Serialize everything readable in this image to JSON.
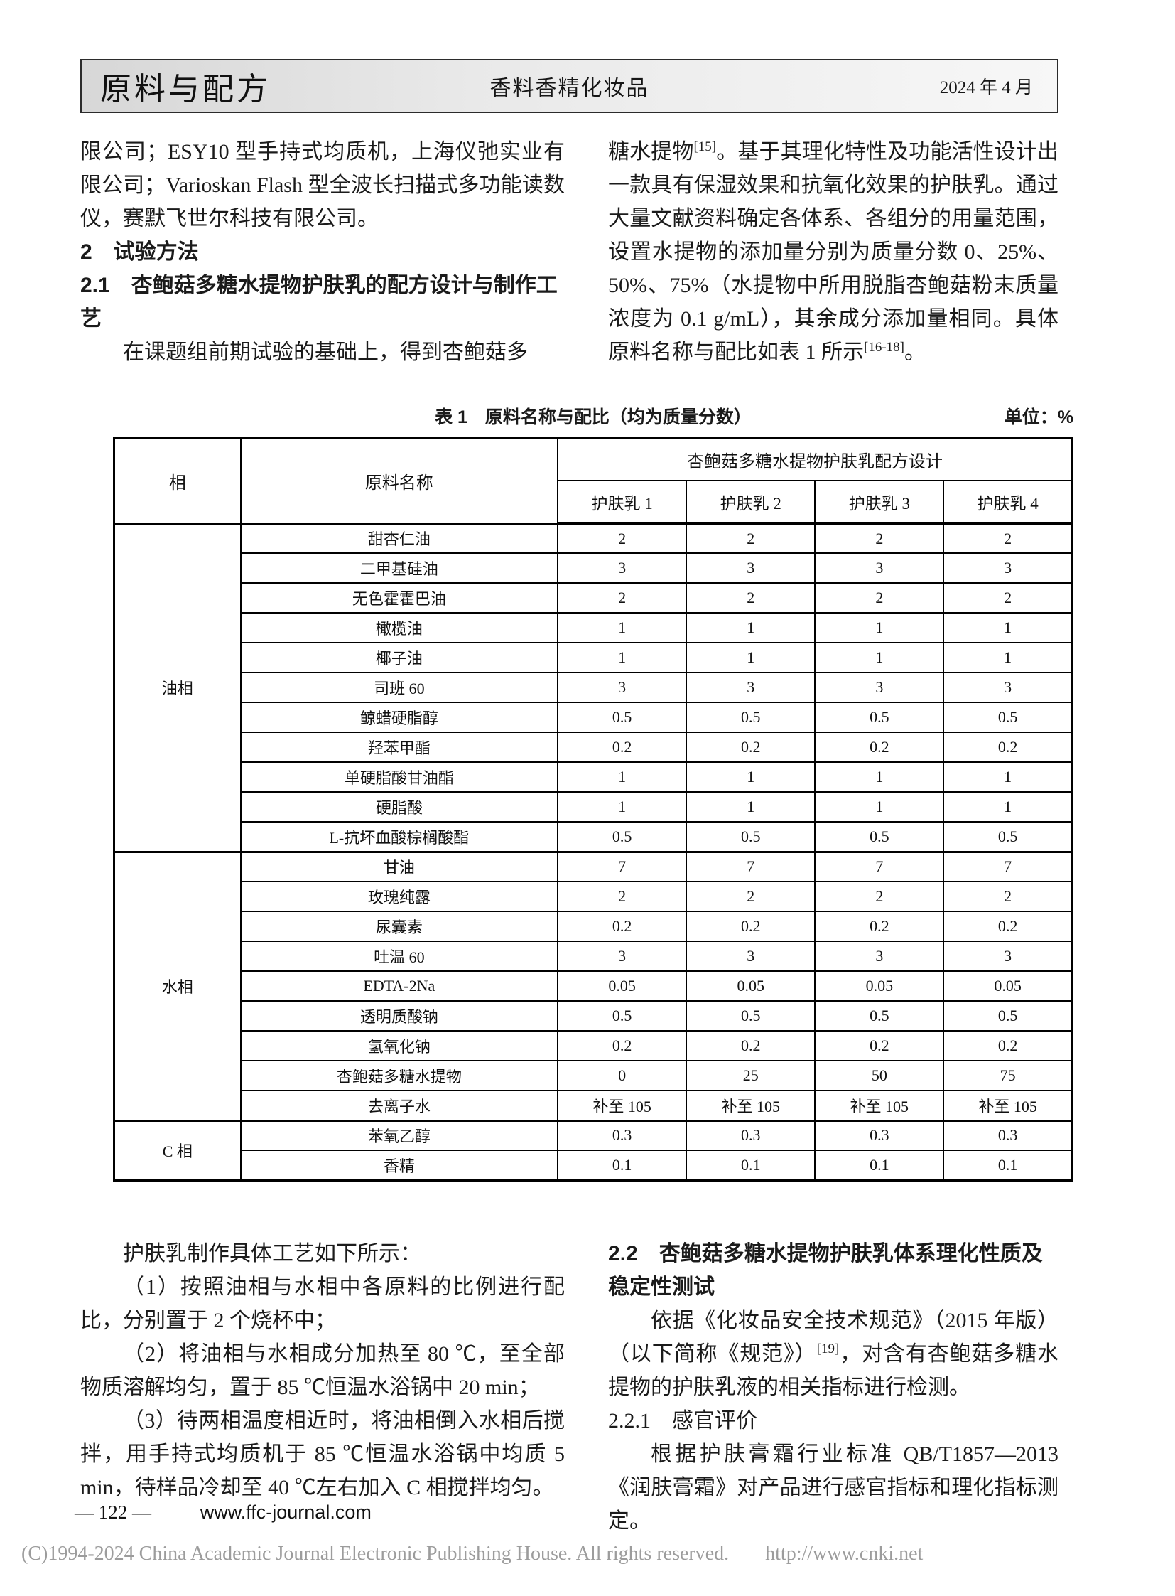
{
  "header": {
    "brand": "原料与配方",
    "journal": "香料香精化妆品",
    "date": "2024 年 4 月"
  },
  "top_left": {
    "p1": "限公司；ESY10 型手持式均质机，上海仪弛实业有限公司；Varioskan Flash 型全波长扫描式多功能读数仪，赛默飞世尔科技有限公司。",
    "h1": "2　试验方法",
    "h2": "2.1　杏鲍菇多糖水提物护肤乳的配方设计与制作工艺",
    "p2": "在课题组前期试验的基础上，得到杏鲍菇多"
  },
  "top_right": {
    "r0": "糖水提物",
    "sup0": "[15]",
    "r1": "。基于其理化特性及功能活性设计出一款具有保湿效果和抗氧化效果的护肤乳。通过大量文献资料确定各体系、各组分的用量范围，设置水提物的添加量分别为质量分数 0、25%、50%、75%（水提物中所用脱脂杏鲍菇粉末质量浓度为 0.1 g/mL），其余成分添加量相同。具体原料名称与配比如表 1 所示",
    "sup1": "[16-18]",
    "r2": "。"
  },
  "table": {
    "title": "表 1　原料名称与配比（均为质量分数）",
    "unit": "单位：%",
    "col_headers": {
      "phase": "相",
      "name": "原料名称",
      "group": "杏鲍菇多糖水提物护肤乳配方设计",
      "products": [
        "护肤乳 1",
        "护肤乳 2",
        "护肤乳 3",
        "护肤乳 4"
      ]
    },
    "sections": [
      {
        "phase": "油相",
        "rows": [
          [
            "甜杏仁油",
            "2",
            "2",
            "2",
            "2"
          ],
          [
            "二甲基硅油",
            "3",
            "3",
            "3",
            "3"
          ],
          [
            "无色霍霍巴油",
            "2",
            "2",
            "2",
            "2"
          ],
          [
            "橄榄油",
            "1",
            "1",
            "1",
            "1"
          ],
          [
            "椰子油",
            "1",
            "1",
            "1",
            "1"
          ],
          [
            "司班 60",
            "3",
            "3",
            "3",
            "3"
          ],
          [
            "鲸蜡硬脂醇",
            "0.5",
            "0.5",
            "0.5",
            "0.5"
          ],
          [
            "羟苯甲酯",
            "0.2",
            "0.2",
            "0.2",
            "0.2"
          ],
          [
            "单硬脂酸甘油酯",
            "1",
            "1",
            "1",
            "1"
          ],
          [
            "硬脂酸",
            "1",
            "1",
            "1",
            "1"
          ],
          [
            "L-抗坏血酸棕榈酸酯",
            "0.5",
            "0.5",
            "0.5",
            "0.5"
          ]
        ]
      },
      {
        "phase": "水相",
        "rows": [
          [
            "甘油",
            "7",
            "7",
            "7",
            "7"
          ],
          [
            "玫瑰纯露",
            "2",
            "2",
            "2",
            "2"
          ],
          [
            "尿囊素",
            "0.2",
            "0.2",
            "0.2",
            "0.2"
          ],
          [
            "吐温 60",
            "3",
            "3",
            "3",
            "3"
          ],
          [
            "EDTA-2Na",
            "0.05",
            "0.05",
            "0.05",
            "0.05"
          ],
          [
            "透明质酸钠",
            "0.5",
            "0.5",
            "0.5",
            "0.5"
          ],
          [
            "氢氧化钠",
            "0.2",
            "0.2",
            "0.2",
            "0.2"
          ],
          [
            "杏鲍菇多糖水提物",
            "0",
            "25",
            "50",
            "75"
          ],
          [
            "去离子水",
            "补至 105",
            "补至 105",
            "补至 105",
            "补至 105"
          ]
        ]
      },
      {
        "phase": "C 相",
        "rows": [
          [
            "苯氧乙醇",
            "0.3",
            "0.3",
            "0.3",
            "0.3"
          ],
          [
            "香精",
            "0.1",
            "0.1",
            "0.1",
            "0.1"
          ]
        ]
      }
    ]
  },
  "bottom_left": {
    "p1": "护肤乳制作具体工艺如下所示：",
    "p2": "（1）按照油相与水相中各原料的比例进行配比，分别置于 2 个烧杯中；",
    "p3": "（2）将油相与水相成分加热至 80 ℃，至全部物质溶解均匀，置于 85 ℃恒温水浴锅中 20 min；",
    "p4": "（3）待两相温度相近时，将油相倒入水相后搅拌，用手持式均质机于 85 ℃恒温水浴锅中均质 5 min，待样品冷却至 40 ℃左右加入 C 相搅拌均匀。"
  },
  "bottom_right": {
    "h1": "2.2　杏鲍菇多糖水提物护肤乳体系理化性质及稳定性测试",
    "p1r0": "依据《化妆品安全技术规范》（2015 年版）（以下简称《规范》）",
    "p1sup": "[19]",
    "p1r1": "，对含有杏鲍菇多糖水提物的护肤乳液的相关指标进行检测。",
    "h2": "2.2.1　感官评价",
    "p2": "根据护肤膏霜行业标准 QB/T1857—2013《润肤膏霜》对产品进行感官指标和理化指标测定。"
  },
  "footer": {
    "page": "— 122 —",
    "site": "www.ffc-journal.com"
  },
  "copyright": {
    "left": "(C)1994-2024 China Academic Journal Electronic Publishing House. All rights reserved.",
    "right": "http://www.cnki.net"
  }
}
